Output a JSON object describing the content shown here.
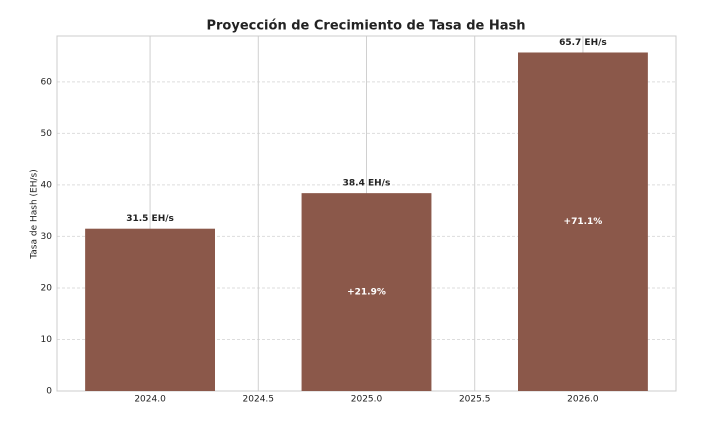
{
  "chart_data": {
    "type": "bar",
    "title": "Proyección de Crecimiento de Tasa de Hash",
    "y_label": "Tasa de Hash (EH/s)",
    "x": [
      2024,
      2025,
      2026
    ],
    "values": [
      31.5,
      38.4,
      65.7
    ],
    "value_labels": [
      "31.5 EH/s",
      "38.4 EH/s",
      "65.7 EH/s"
    ],
    "growth_labels": [
      null,
      "+21.9%",
      "+71.1%"
    ],
    "color": "#8b584a",
    "xlim": [
      2023.57,
      2026.43
    ],
    "xticks": [
      {
        "value": 2024,
        "label": "2024.0"
      },
      2024.5,
      {
        "value": 2025,
        "label": "2025.0"
      },
      2025.5,
      {
        "value": 2026,
        "label": "2026.0"
      }
    ],
    "ylim": [
      0,
      68.9
    ],
    "yticks": [
      0,
      10,
      20,
      30,
      40,
      50,
      60
    ],
    "grid": true
  }
}
